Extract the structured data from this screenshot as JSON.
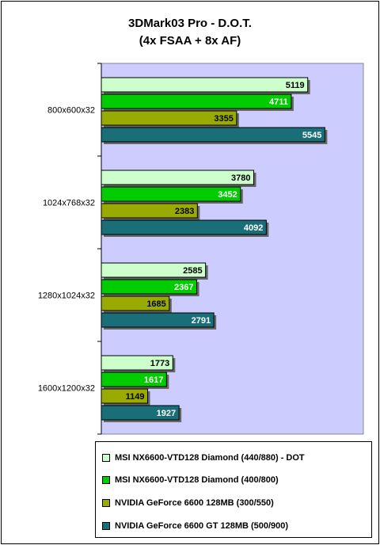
{
  "chart_data": {
    "type": "bar",
    "orientation": "horizontal",
    "title": "3DMark03 Pro - D.O.T.",
    "subtitle": "(4x FSAA + 8x AF)",
    "categories": [
      "800x600x32",
      "1024x768x32",
      "1280x1024x32",
      "1600x1200x32"
    ],
    "series": [
      {
        "name": "MSI NX6600-VTD128 Diamond (440/880) - DOT",
        "color": "#ccffcc",
        "values": [
          5119,
          3780,
          2585,
          1773
        ]
      },
      {
        "name": "MSI NX6600-VTD128 Diamond (400/800)",
        "color": "#00cc00",
        "values": [
          4711,
          3452,
          2367,
          1617
        ]
      },
      {
        "name": "NVIDIA GeForce 6600 128MB (300/550)",
        "color": "#99aa00",
        "values": [
          3355,
          2383,
          1685,
          1149
        ]
      },
      {
        "name": "NVIDIA GeForce 6600 GT 128MB (500/900)",
        "color": "#1a6e78",
        "values": [
          5545,
          4092,
          2791,
          1927
        ]
      }
    ],
    "xlim": [
      0,
      6500
    ],
    "legend_position": "bottom",
    "plot_background": "#ccccff",
    "grid": false
  }
}
